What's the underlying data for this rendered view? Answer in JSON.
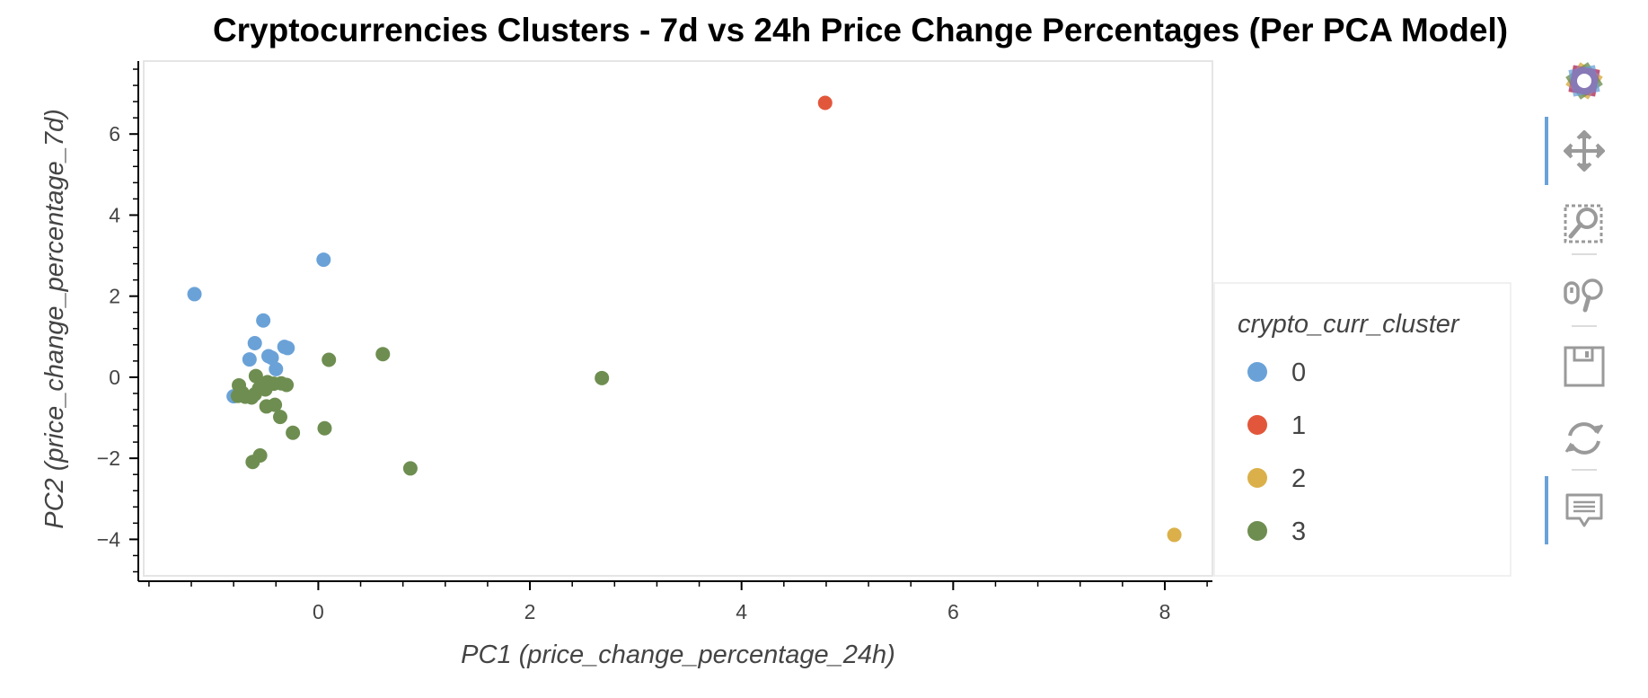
{
  "chart_data": {
    "type": "scatter",
    "title": "Cryptocurrencies Clusters - 7d vs 24h Price Change Percentages (Per PCA Model)",
    "xlabel": "PC1 (price_change_percentage_24h)",
    "ylabel": "PC2 (price_change_percentage_7d)",
    "xlim": [
      -1.65,
      8.45
    ],
    "ylim": [
      -4.9,
      7.8
    ],
    "x_ticks": [
      0,
      2,
      4,
      6,
      8
    ],
    "y_ticks": [
      -4,
      -2,
      0,
      2,
      4,
      6
    ],
    "x_tick_labels": [
      "0",
      "2",
      "4",
      "6",
      "8"
    ],
    "y_tick_labels": [
      "−4",
      "−2",
      "0",
      "2",
      "4",
      "6"
    ],
    "grid": false,
    "legend": {
      "title": "crypto_curr_cluster",
      "placement": "right"
    },
    "series": [
      {
        "name": "0",
        "color": "#6aa2d8",
        "points": [
          [
            -1.17,
            2.05
          ],
          [
            0.05,
            2.9
          ],
          [
            -0.52,
            1.4
          ],
          [
            -0.6,
            0.84
          ],
          [
            -0.32,
            0.75
          ],
          [
            -0.29,
            0.72
          ],
          [
            -0.47,
            0.52
          ],
          [
            -0.44,
            0.48
          ],
          [
            -0.65,
            0.44
          ],
          [
            -0.4,
            0.2
          ],
          [
            -0.8,
            -0.47
          ]
        ]
      },
      {
        "name": "1",
        "color": "#e2573b",
        "points": [
          [
            4.79,
            6.77
          ]
        ]
      },
      {
        "name": "2",
        "color": "#dbb04a",
        "points": [
          [
            8.09,
            -3.89
          ]
        ]
      },
      {
        "name": "3",
        "color": "#6e8e51",
        "points": [
          [
            0.1,
            0.43
          ],
          [
            0.61,
            0.57
          ],
          [
            2.68,
            -0.02
          ],
          [
            -0.59,
            0.03
          ],
          [
            -0.48,
            -0.12
          ],
          [
            -0.42,
            -0.16
          ],
          [
            -0.35,
            -0.15
          ],
          [
            -0.3,
            -0.19
          ],
          [
            -0.75,
            -0.2
          ],
          [
            -0.56,
            -0.28
          ],
          [
            -0.5,
            -0.3
          ],
          [
            -0.72,
            -0.38
          ],
          [
            -0.6,
            -0.42
          ],
          [
            -0.76,
            -0.46
          ],
          [
            -0.69,
            -0.48
          ],
          [
            -0.63,
            -0.5
          ],
          [
            -0.49,
            -0.72
          ],
          [
            -0.41,
            -0.68
          ],
          [
            -0.36,
            -0.98
          ],
          [
            -0.24,
            -1.37
          ],
          [
            0.06,
            -1.26
          ],
          [
            0.87,
            -2.25
          ],
          [
            -0.55,
            -1.93
          ],
          [
            -0.62,
            -2.09
          ]
        ]
      }
    ]
  },
  "toolbar": {
    "tools": [
      "bokeh-logo-icon",
      "pan-icon",
      "box-zoom-icon",
      "wheel-zoom-icon",
      "save-icon",
      "reset-icon",
      "hover-icon"
    ]
  }
}
